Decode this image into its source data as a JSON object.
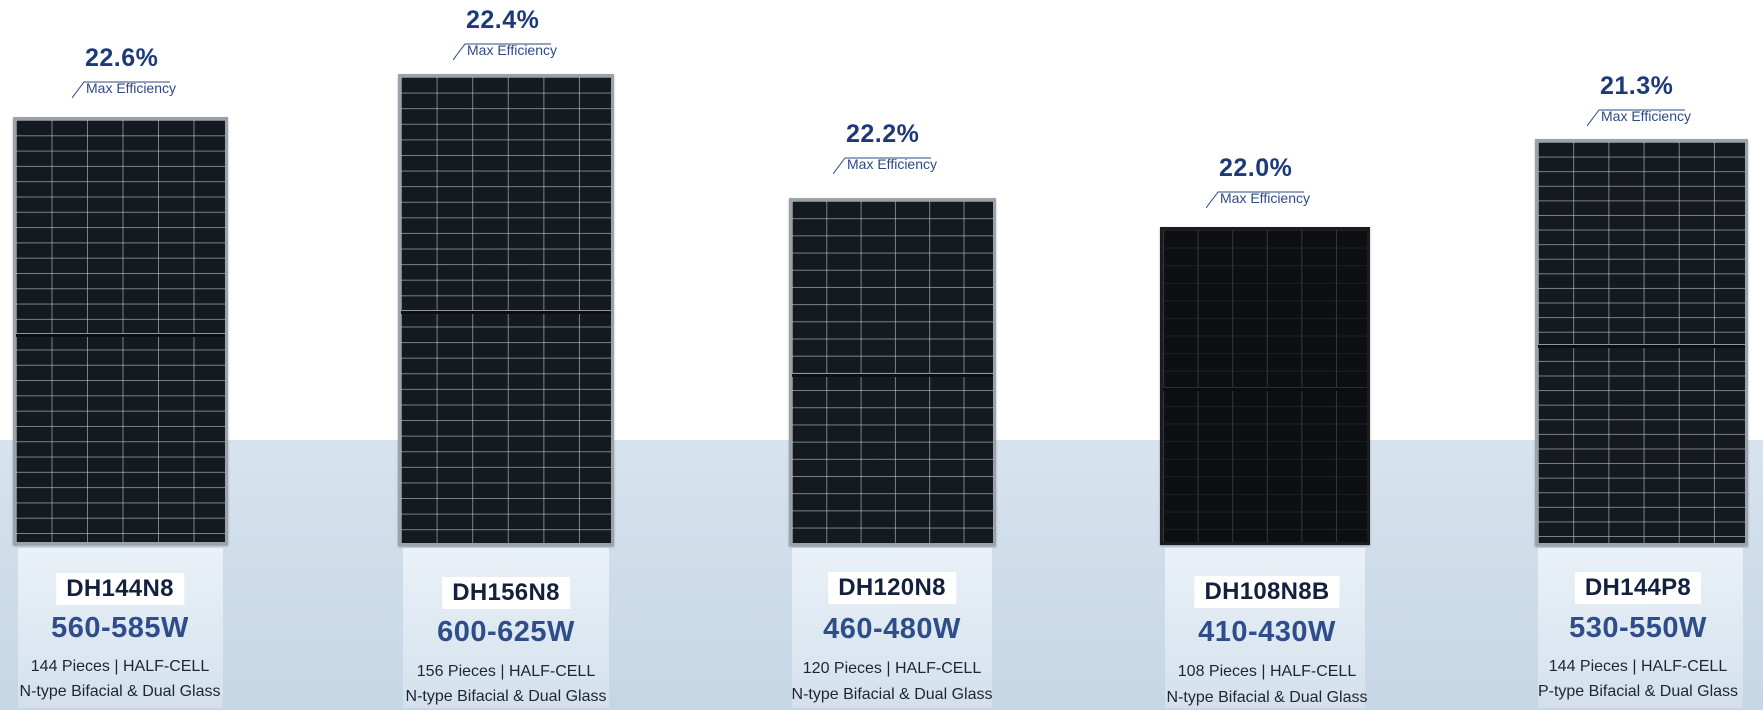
{
  "efficiency_label": "Max Efficiency",
  "colors": {
    "accent_blue": "#1c3a7a",
    "power_blue": "#2e4d8a",
    "floor": "#cfdbe8",
    "panel_frame": "#9aa3aa"
  },
  "products": [
    {
      "efficiency": "22.6%",
      "efficiency_label": "Max Efficiency",
      "model": "DH144N8",
      "power": "560-585W",
      "cells": "144 Pieces | HALF-CELL",
      "type": "N-type Bifacial & Dual Glass"
    },
    {
      "efficiency": "22.4%",
      "efficiency_label": "Max Efficiency",
      "model": "DH156N8",
      "power": "600-625W",
      "cells": "156 Pieces | HALF-CELL",
      "type": "N-type Bifacial & Dual Glass"
    },
    {
      "efficiency": "22.2%",
      "efficiency_label": "Max Efficiency",
      "model": "DH120N8",
      "power": "460-480W",
      "cells": "120 Pieces | HALF-CELL",
      "type": "N-type Bifacial & Dual Glass"
    },
    {
      "efficiency": "22.0%",
      "efficiency_label": "Max Efficiency",
      "model": "DH108N8B",
      "power": "410-430W",
      "cells": "108 Pieces | HALF-CELL",
      "type": "N-type Bifacial & Dual Glass"
    },
    {
      "efficiency": "21.3%",
      "efficiency_label": "Max Efficiency",
      "model": "DH144P8",
      "power": "530-550W",
      "cells": "144 Pieces | HALF-CELL",
      "type": "P-type Bifacial & Dual Glass"
    }
  ]
}
